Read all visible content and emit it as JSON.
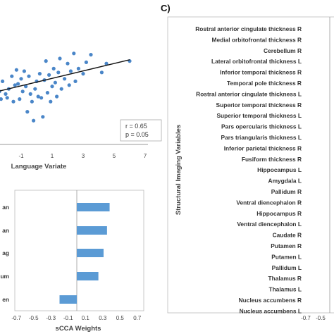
{
  "panel_c": {
    "label": "C)"
  },
  "chart_data": [
    {
      "type": "scatter",
      "xlabel": "Language Variate",
      "x_ticks": [
        "-1",
        "1",
        "3",
        "5",
        "7"
      ],
      "stats": {
        "r": "r = 0.65",
        "p": "p = 0.05"
      },
      "points": [
        [
          -2.8,
          2.0
        ],
        [
          -2.7,
          1.0
        ],
        [
          -2.6,
          1.6
        ],
        [
          -2.5,
          2.4
        ],
        [
          -2.4,
          1.4
        ],
        [
          -2.3,
          0.8
        ],
        [
          -2.2,
          2.2
        ],
        [
          -2.0,
          1.2
        ],
        [
          -1.9,
          0.9
        ],
        [
          -1.8,
          1.6
        ],
        [
          -1.6,
          2.6
        ],
        [
          -1.5,
          0.6
        ],
        [
          -1.4,
          1.9
        ],
        [
          -1.3,
          3.1
        ],
        [
          -1.2,
          2.0
        ],
        [
          -1.1,
          0.8
        ],
        [
          -1.0,
          2.4
        ],
        [
          -0.9,
          1.4
        ],
        [
          -0.8,
          3.0
        ],
        [
          -0.7,
          1.8
        ],
        [
          -0.6,
          -0.2
        ],
        [
          -0.5,
          2.6
        ],
        [
          -0.4,
          1.2
        ],
        [
          -0.3,
          0.6
        ],
        [
          -0.2,
          -0.9
        ],
        [
          -0.1,
          1.6
        ],
        [
          0.0,
          2.2
        ],
        [
          0.1,
          1.0
        ],
        [
          0.2,
          2.8
        ],
        [
          0.3,
          0.9
        ],
        [
          0.4,
          -0.6
        ],
        [
          0.5,
          2.3
        ],
        [
          0.6,
          3.8
        ],
        [
          0.7,
          1.3
        ],
        [
          0.8,
          2.7
        ],
        [
          0.9,
          0.6
        ],
        [
          1.0,
          1.8
        ],
        [
          1.1,
          3.2
        ],
        [
          1.2,
          2.1
        ],
        [
          1.3,
          1.0
        ],
        [
          1.4,
          2.9
        ],
        [
          1.5,
          4.0
        ],
        [
          1.6,
          1.6
        ],
        [
          1.8,
          2.4
        ],
        [
          2.0,
          3.6
        ],
        [
          2.1,
          1.9
        ],
        [
          2.2,
          3.0
        ],
        [
          2.4,
          4.4
        ],
        [
          2.5,
          2.2
        ],
        [
          2.7,
          3.2
        ],
        [
          3.0,
          2.8
        ],
        [
          3.2,
          3.7
        ],
        [
          3.5,
          4.3
        ],
        [
          4.2,
          2.9
        ],
        [
          4.5,
          3.6
        ],
        [
          6.0,
          3.8
        ]
      ],
      "trend": {
        "x": [
          -3.2,
          6.0
        ],
        "y": [
          1.2,
          3.9
        ]
      }
    },
    {
      "type": "bar",
      "orientation": "horizontal",
      "xlabel": "sCCA Weights",
      "x_ticks": [
        "-0.7",
        "-0.5",
        "-0.3",
        "-0.1",
        "0.1",
        "0.3",
        "0.5",
        "0.7"
      ],
      "category_fragments": [
        "an",
        "an",
        "ag",
        "um",
        "en"
      ],
      "values": [
        0.38,
        0.35,
        0.31,
        0.25,
        -0.2
      ],
      "xlim": [
        -0.7,
        0.7
      ],
      "color": "#5B9BD5"
    },
    {
      "type": "bar",
      "orientation": "horizontal",
      "ylabel": "Structural Imaging Variables",
      "x_ticks": [
        "-0.7",
        "-0.5"
      ],
      "categories": [
        "Rostral anterior cingulate thickness R",
        "Medial orbitofrontal thickness R",
        "Cerebellum R",
        "Lateral orbitofrontal thickness L",
        "Inferior temporal thickness R",
        "Temporal pole thickness R",
        "Rostral anterior cingulate thickness L",
        "Superior temporal thickness R",
        "Superior temporal thickness L",
        "Pars opercularis thickness L",
        "Pars triangularis thickness L",
        "Inferior parietal thickness R",
        "Fusiform thickness R",
        "Hippocampus L",
        "Amygdala L",
        "Pallidum R",
        "Ventral diencephalon R",
        "Hippocampus R",
        "Ventral diencephalon L",
        "Caudate R",
        "Putamen R",
        "Putamen L",
        "Pallidum L",
        "Thalamus R",
        "Thalamus L",
        "Nucleus accumbens R",
        "Nucleus accumbens L"
      ]
    }
  ]
}
